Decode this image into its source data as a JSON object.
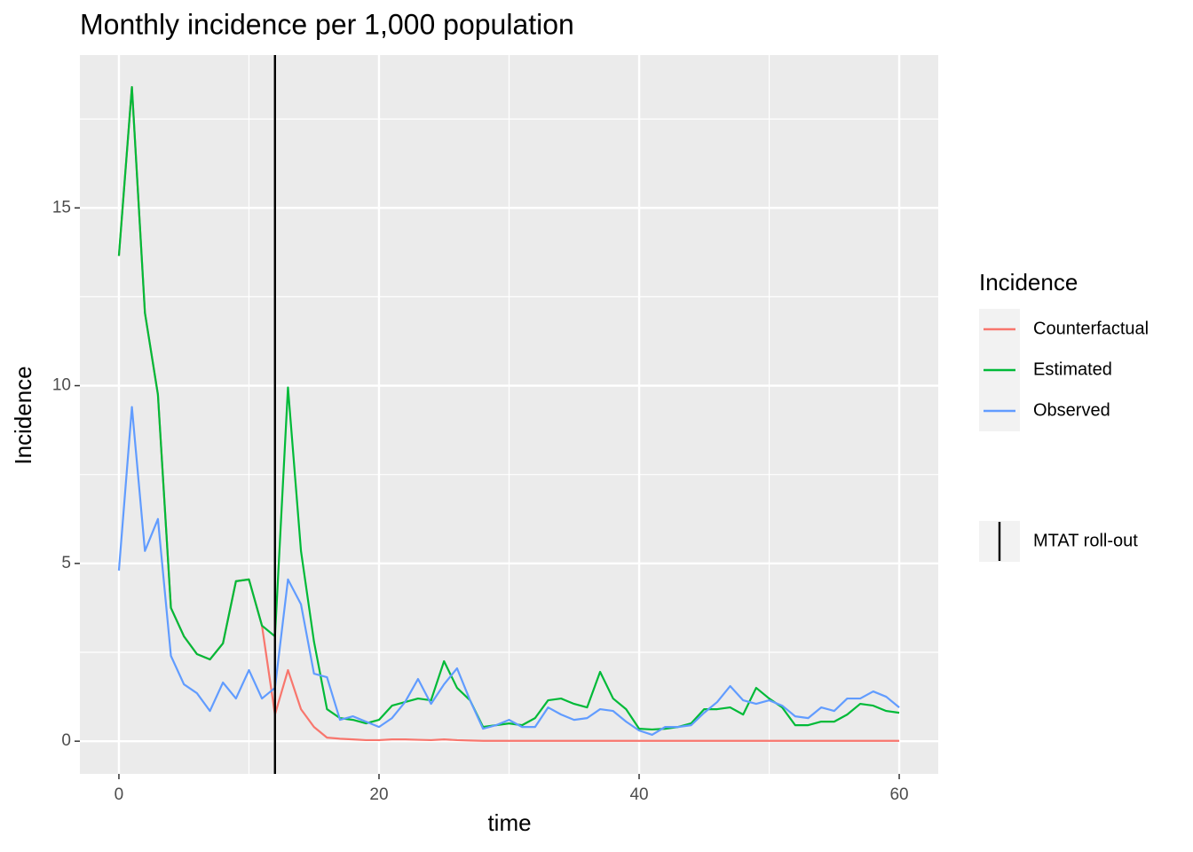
{
  "chart_data": {
    "type": "line",
    "title": "Monthly incidence per 1,000 population",
    "x_label": "time",
    "y_label": "Incidence",
    "legend_title": "Incidence",
    "x": [
      0,
      1,
      2,
      3,
      4,
      5,
      6,
      7,
      8,
      9,
      10,
      11,
      12,
      13,
      14,
      15,
      16,
      17,
      18,
      19,
      20,
      21,
      22,
      23,
      24,
      25,
      26,
      27,
      28,
      29,
      30,
      31,
      32,
      33,
      34,
      35,
      36,
      37,
      38,
      39,
      40,
      41,
      42,
      43,
      44,
      45,
      46,
      47,
      48,
      49,
      50,
      51,
      52,
      53,
      54,
      55,
      56,
      57,
      58,
      59,
      60
    ],
    "series": [
      {
        "name": "Counterfactual",
        "color": "#f8766d",
        "values": [
          13.65,
          18.4,
          12.05,
          9.75,
          3.75,
          2.95,
          2.45,
          2.3,
          2.75,
          4.5,
          4.55,
          3.25,
          0.75,
          2.0,
          0.9,
          0.4,
          0.1,
          0.07,
          0.05,
          0.03,
          0.03,
          0.05,
          0.05,
          0.04,
          0.03,
          0.05,
          0.03,
          0.02,
          0.01,
          0.01,
          0.01,
          0.01,
          0.01,
          0.01,
          0.01,
          0.01,
          0.01,
          0.01,
          0.01,
          0.01,
          0.01,
          0.01,
          0.01,
          0.01,
          0.01,
          0.01,
          0.01,
          0.01,
          0.01,
          0.01,
          0.01,
          0.01,
          0.01,
          0.01,
          0.01,
          0.01,
          0.01,
          0.01,
          0.01,
          0.01,
          0.01
        ]
      },
      {
        "name": "Estimated",
        "color": "#00ba38",
        "values": [
          13.65,
          18.4,
          12.05,
          9.75,
          3.75,
          2.95,
          2.45,
          2.3,
          2.75,
          4.5,
          4.55,
          3.25,
          2.95,
          9.95,
          5.35,
          2.8,
          0.9,
          0.65,
          0.6,
          0.5,
          0.6,
          1.0,
          1.1,
          1.2,
          1.15,
          2.25,
          1.5,
          1.15,
          0.4,
          0.45,
          0.5,
          0.45,
          0.65,
          1.15,
          1.2,
          1.05,
          0.95,
          1.95,
          1.2,
          0.9,
          0.35,
          0.33,
          0.35,
          0.4,
          0.5,
          0.9,
          0.9,
          0.95,
          0.75,
          1.5,
          1.2,
          0.95,
          0.45,
          0.45,
          0.55,
          0.55,
          0.75,
          1.05,
          1.0,
          0.85,
          0.8
        ]
      },
      {
        "name": "Observed",
        "color": "#619cff",
        "values": [
          4.8,
          9.4,
          5.35,
          6.25,
          2.4,
          1.6,
          1.35,
          0.85,
          1.65,
          1.2,
          2.0,
          1.2,
          1.5,
          4.55,
          3.85,
          1.9,
          1.8,
          0.6,
          0.7,
          0.55,
          0.4,
          0.65,
          1.1,
          1.75,
          1.05,
          1.6,
          2.05,
          1.15,
          0.35,
          0.45,
          0.6,
          0.4,
          0.4,
          0.95,
          0.75,
          0.6,
          0.65,
          0.9,
          0.85,
          0.55,
          0.3,
          0.18,
          0.4,
          0.4,
          0.45,
          0.8,
          1.1,
          1.55,
          1.15,
          1.05,
          1.15,
          1.0,
          0.7,
          0.65,
          0.95,
          0.85,
          1.2,
          1.2,
          1.4,
          1.25,
          0.95
        ]
      }
    ],
    "vline": {
      "x": 12,
      "name": "MTAT roll-out",
      "color": "#000000"
    },
    "xlim": [
      -3,
      63
    ],
    "xticks": [
      0,
      20,
      40,
      60
    ],
    "x_minor_grid": [
      10,
      30,
      50
    ],
    "ylim": [
      -0.92,
      19.3
    ],
    "yticks": [
      0,
      5,
      10,
      15
    ],
    "y_minor_grid": [
      2.5,
      7.5,
      12.5,
      17.5
    ],
    "grid": true
  }
}
